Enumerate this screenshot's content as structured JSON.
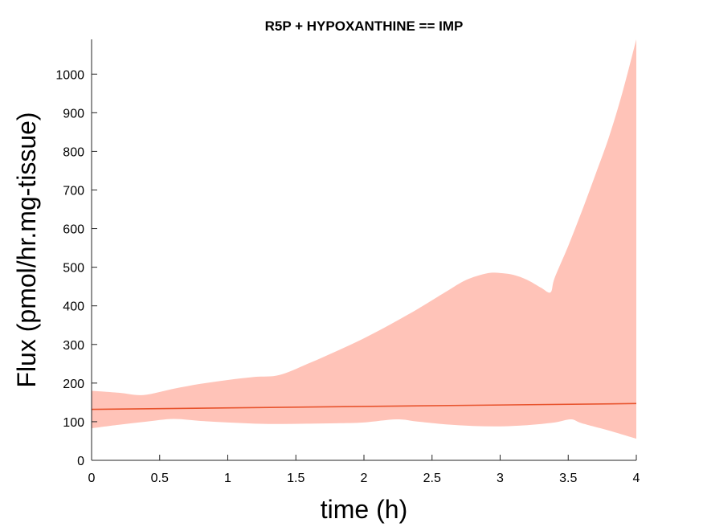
{
  "chart_data": {
    "type": "area",
    "title": "R5P + HYPOXANTHINE == IMP",
    "xlabel": "time (h)",
    "ylabel": "Flux (pmol/hr.mg-tissue)",
    "xlim": [
      0,
      4
    ],
    "ylim": [
      0,
      1090
    ],
    "xticks": [
      0,
      0.5,
      1,
      1.5,
      2,
      2.5,
      3,
      3.5,
      4
    ],
    "xtick_labels": [
      "0",
      "0.5",
      "1",
      "1.5",
      "2",
      "2.5",
      "3",
      "3.5",
      "4"
    ],
    "yticks": [
      0,
      100,
      200,
      300,
      400,
      500,
      600,
      700,
      800,
      900,
      1000
    ],
    "ytick_labels": [
      "0",
      "100",
      "200",
      "300",
      "400",
      "500",
      "600",
      "700",
      "800",
      "900",
      "1000"
    ],
    "grid": false,
    "band": {
      "color": "#ffc3b8",
      "upper": [
        [
          0,
          180
        ],
        [
          0.2,
          175
        ],
        [
          0.38,
          169
        ],
        [
          0.6,
          185
        ],
        [
          0.8,
          198
        ],
        [
          1.0,
          208
        ],
        [
          1.2,
          216
        ],
        [
          1.38,
          221
        ],
        [
          1.6,
          252
        ],
        [
          1.8,
          283
        ],
        [
          2.0,
          316
        ],
        [
          2.2,
          353
        ],
        [
          2.4,
          393
        ],
        [
          2.6,
          436
        ],
        [
          2.75,
          467
        ],
        [
          2.9,
          484
        ],
        [
          3.0,
          485
        ],
        [
          3.1,
          480
        ],
        [
          3.2,
          467
        ],
        [
          3.3,
          447
        ],
        [
          3.37,
          435
        ],
        [
          3.4,
          472
        ],
        [
          3.5,
          555
        ],
        [
          3.6,
          645
        ],
        [
          3.7,
          740
        ],
        [
          3.8,
          838
        ],
        [
          3.9,
          955
        ],
        [
          4.0,
          1090
        ]
      ],
      "lower": [
        [
          0,
          83
        ],
        [
          0.2,
          92
        ],
        [
          0.4,
          100
        ],
        [
          0.6,
          107
        ],
        [
          0.8,
          102
        ],
        [
          1.0,
          98
        ],
        [
          1.2,
          95
        ],
        [
          1.4,
          94
        ],
        [
          1.6,
          95
        ],
        [
          1.8,
          96
        ],
        [
          2.0,
          98
        ],
        [
          2.24,
          106
        ],
        [
          2.4,
          100
        ],
        [
          2.6,
          93
        ],
        [
          2.8,
          89
        ],
        [
          3.0,
          88
        ],
        [
          3.2,
          91
        ],
        [
          3.4,
          98
        ],
        [
          3.52,
          106
        ],
        [
          3.6,
          96
        ],
        [
          3.8,
          77
        ],
        [
          4.0,
          56
        ]
      ]
    },
    "series": [
      {
        "color": "#e8542e",
        "x": [
          0,
          4
        ],
        "y": [
          132,
          147
        ]
      }
    ]
  }
}
